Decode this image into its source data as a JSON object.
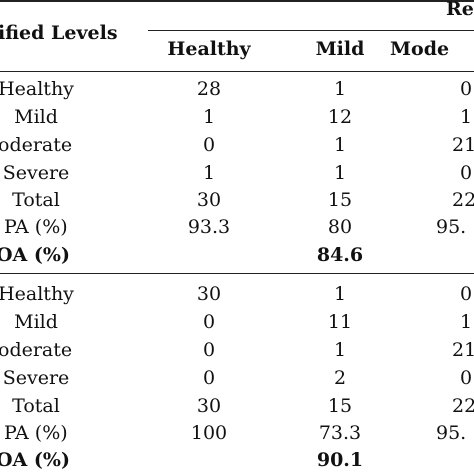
{
  "header": {
    "classified_levels": "ified Levels",
    "reference_partial": "Re",
    "columns": [
      "Healthy",
      "Mild",
      "Mode"
    ]
  },
  "sections": [
    {
      "rows": [
        {
          "label": "Healthy",
          "cells": [
            "28",
            "1",
            "0"
          ]
        },
        {
          "label": "Mild",
          "cells": [
            "1",
            "12",
            "1"
          ]
        },
        {
          "label": "oderate",
          "cells": [
            "0",
            "1",
            "21"
          ]
        },
        {
          "label": "Severe",
          "cells": [
            "1",
            "1",
            "0"
          ]
        },
        {
          "label": "Total",
          "cells": [
            "30",
            "15",
            "22"
          ]
        },
        {
          "label": "PA (%)",
          "cells": [
            "93.3",
            "80",
            "95."
          ]
        }
      ],
      "oa": {
        "label": "OA (%)",
        "value": "84.6"
      }
    },
    {
      "rows": [
        {
          "label": "Healthy",
          "cells": [
            "30",
            "1",
            "0"
          ]
        },
        {
          "label": "Mild",
          "cells": [
            "0",
            "11",
            "1"
          ]
        },
        {
          "label": "oderate",
          "cells": [
            "0",
            "1",
            "21"
          ]
        },
        {
          "label": "Severe",
          "cells": [
            "0",
            "2",
            "0"
          ]
        },
        {
          "label": "Total",
          "cells": [
            "30",
            "15",
            "22"
          ]
        },
        {
          "label": "PA (%)",
          "cells": [
            "100",
            "73.3",
            "95."
          ]
        }
      ],
      "oa": {
        "label": "OA (%)",
        "value": "90.1"
      }
    }
  ]
}
